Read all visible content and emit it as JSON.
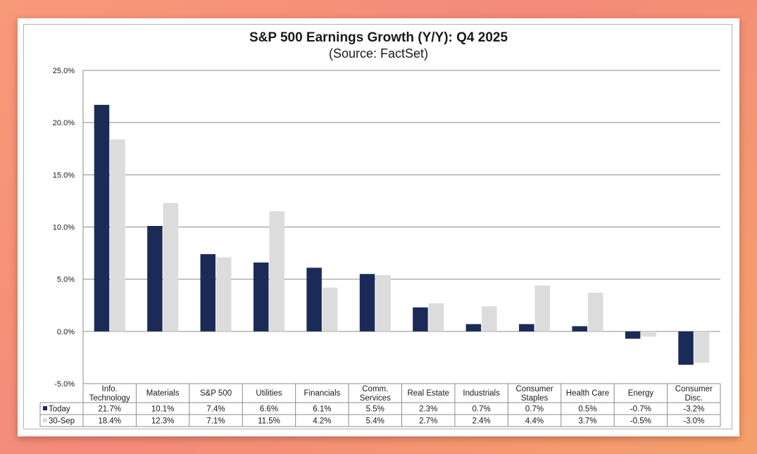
{
  "chart_data": {
    "type": "bar",
    "title": "S&P 500 Earnings Growth (Y/Y): Q4 2025",
    "subtitle": "(Source: FactSet)",
    "categories": [
      [
        "Info.",
        "Technology"
      ],
      [
        "Materials"
      ],
      [
        "S&P 500"
      ],
      [
        "Utilities"
      ],
      [
        "Financials"
      ],
      [
        "Comm.",
        "Services"
      ],
      [
        "Real Estate"
      ],
      [
        "Industrials"
      ],
      [
        "Consumer",
        "Staples"
      ],
      [
        "Health Care"
      ],
      [
        "Energy"
      ],
      [
        "Consumer",
        "Disc."
      ]
    ],
    "series": [
      {
        "name": "Today",
        "color": "#1b2b57",
        "values": [
          21.7,
          10.1,
          7.4,
          6.6,
          6.1,
          5.5,
          2.3,
          0.7,
          0.7,
          0.5,
          -0.7,
          -3.2
        ],
        "labels": [
          "21.7%",
          "10.1%",
          "7.4%",
          "6.6%",
          "6.1%",
          "5.5%",
          "2.3%",
          "0.7%",
          "0.7%",
          "0.5%",
          "-0.7%",
          "-3.2%"
        ]
      },
      {
        "name": "30-Sep",
        "color": "#dcdcdc",
        "values": [
          18.4,
          12.3,
          7.1,
          11.5,
          4.2,
          5.4,
          2.7,
          2.4,
          4.4,
          3.7,
          -0.5,
          -3.0
        ],
        "labels": [
          "18.4%",
          "12.3%",
          "7.1%",
          "11.5%",
          "4.2%",
          "5.4%",
          "2.7%",
          "2.4%",
          "4.4%",
          "3.7%",
          "-0.5%",
          "-3.0%"
        ]
      }
    ],
    "ylim": [
      -5,
      25
    ],
    "yticks": [
      {
        "value": 25,
        "label": "25.0%"
      },
      {
        "value": 20,
        "label": "20.0%"
      },
      {
        "value": 15,
        "label": "15.0%"
      },
      {
        "value": 10,
        "label": "10.0%"
      },
      {
        "value": 5,
        "label": "5.0%"
      },
      {
        "value": 0,
        "label": "0.0%"
      },
      {
        "value": -5,
        "label": "-5.0%"
      }
    ],
    "grid": true,
    "legend": "data-table-below",
    "xlabel": "",
    "ylabel": ""
  }
}
